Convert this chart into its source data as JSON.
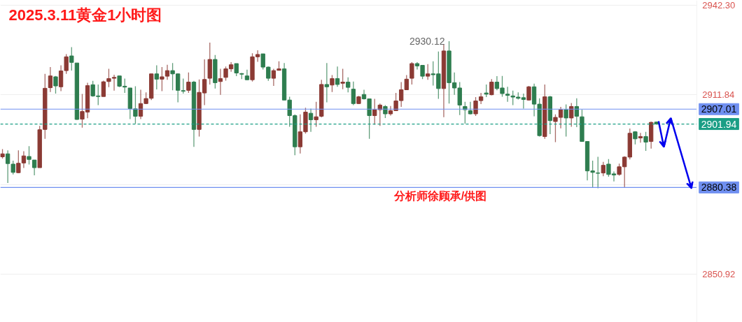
{
  "chart_data": {
    "type": "candlestick",
    "title": "2025.3.11黄金1小时图",
    "categories": [
      null,
      null,
      null,
      null,
      null,
      null,
      null,
      null,
      null,
      null,
      null,
      null,
      null,
      null,
      null,
      null,
      null,
      null,
      null,
      null,
      null,
      null,
      null,
      null,
      null,
      null,
      null,
      null,
      null,
      null,
      null,
      null,
      null,
      null,
      null,
      null,
      null,
      null,
      null,
      null,
      null,
      null,
      null,
      null,
      null,
      null,
      null,
      null,
      null,
      null,
      null,
      null,
      null,
      null,
      null,
      null,
      null,
      null,
      null,
      null,
      null,
      null,
      null,
      null,
      null,
      null,
      null,
      null,
      null,
      null,
      null,
      null,
      null,
      null,
      null,
      null,
      null,
      null,
      null,
      null,
      null,
      null,
      null,
      null,
      null,
      null,
      null,
      null,
      null,
      null,
      null,
      null,
      null,
      null,
      null,
      null,
      null,
      null,
      null,
      null,
      null,
      null,
      null,
      null,
      null,
      null,
      null,
      null,
      null,
      null,
      null,
      null,
      null,
      null,
      null,
      null,
      null,
      null,
      null,
      null,
      null,
      null,
      null,
      null
    ],
    "ohlc": [
      [
        2890.8,
        2893.4,
        2890.2,
        2891.8
      ],
      [
        2891.8,
        2893.0,
        2881.9,
        2888.5
      ],
      [
        2888.3,
        2889.5,
        2884.8,
        2885.5
      ],
      [
        2885.4,
        2893.0,
        2885.2,
        2888.6
      ],
      [
        2888.7,
        2892.7,
        2887.0,
        2891.1
      ],
      [
        2890.9,
        2894.4,
        2888.2,
        2889.9
      ],
      [
        2889.7,
        2889.7,
        2884.5,
        2887.1
      ],
      [
        2887.1,
        2901.3,
        2887.1,
        2900.0
      ],
      [
        2900.1,
        2919.0,
        2896.9,
        2914.1
      ],
      [
        2914.3,
        2921.3,
        2912.8,
        2918.3
      ],
      [
        2918.0,
        2918.3,
        2912.3,
        2914.9
      ],
      [
        2914.6,
        2921.9,
        2913.1,
        2920.0
      ],
      [
        2920.1,
        2925.7,
        2919.0,
        2924.8
      ],
      [
        2925.1,
        2928.1,
        2920.1,
        2922.9
      ],
      [
        2922.7,
        2922.7,
        2903.4,
        2903.5
      ],
      [
        2903.6,
        2912.2,
        2900.7,
        2906.2
      ],
      [
        2906.0,
        2916.0,
        2903.9,
        2915.0
      ],
      [
        2915.3,
        2916.6,
        2911.2,
        2911.5
      ],
      [
        2911.5,
        2915.4,
        2908.4,
        2911.3
      ],
      [
        2911.3,
        2916.7,
        2911.3,
        2916.3
      ],
      [
        2916.4,
        2920.7,
        2914.5,
        2917.4
      ],
      [
        2917.5,
        2918.7,
        2913.3,
        2917.8
      ],
      [
        2918.3,
        2918.3,
        2914.5,
        2914.8
      ],
      [
        2914.8,
        2917.4,
        2912.5,
        2914.5
      ],
      [
        2914.2,
        2914.2,
        2903.6,
        2907.2
      ],
      [
        2907.1,
        2914.8,
        2902.1,
        2904.6
      ],
      [
        2904.6,
        2913.6,
        2903.6,
        2908.9
      ],
      [
        2908.9,
        2912.7,
        2908.7,
        2910.6
      ],
      [
        2910.7,
        2919.0,
        2910.1,
        2919.0
      ],
      [
        2919.0,
        2921.9,
        2913.7,
        2917.2
      ],
      [
        2917.2,
        2921.3,
        2913.1,
        2918.0
      ],
      [
        2918.2,
        2922.1,
        2917.0,
        2920.1
      ],
      [
        2920.1,
        2922.7,
        2913.4,
        2919.0
      ],
      [
        2919.0,
        2919.2,
        2909.3,
        2913.4
      ],
      [
        2913.3,
        2917.4,
        2912.3,
        2913.1
      ],
      [
        2913.4,
        2919.5,
        2912.5,
        2916.2
      ],
      [
        2916.2,
        2916.6,
        2894.2,
        2900.1
      ],
      [
        2900.1,
        2917.1,
        2897.7,
        2912.7
      ],
      [
        2912.5,
        2923.9,
        2908.4,
        2917.1
      ],
      [
        2917.5,
        2929.6,
        2915.4,
        2923.9
      ],
      [
        2923.9,
        2925.4,
        2914.0,
        2916.0
      ],
      [
        2916.4,
        2920.7,
        2911.9,
        2917.4
      ],
      [
        2917.8,
        2921.5,
        2916.7,
        2920.7
      ],
      [
        2920.7,
        2923.0,
        2919.7,
        2922.1
      ],
      [
        2922.5,
        2922.5,
        2918.2,
        2919.3
      ],
      [
        2919.1,
        2919.3,
        2917.2,
        2918.9
      ],
      [
        2918.3,
        2920.4,
        2916.9,
        2917.0
      ],
      [
        2917.0,
        2926.0,
        2916.4,
        2924.8
      ],
      [
        2924.8,
        2927.0,
        2923.1,
        2925.6
      ],
      [
        2925.8,
        2925.8,
        2920.5,
        2921.3
      ],
      [
        2921.3,
        2921.5,
        2916.6,
        2917.5
      ],
      [
        2917.5,
        2920.7,
        2914.9,
        2920.1
      ],
      [
        2920.2,
        2923.3,
        2920.1,
        2920.7
      ],
      [
        2920.7,
        2922.7,
        2910.1,
        2910.1
      ],
      [
        2910.1,
        2911.2,
        2901.0,
        2904.8
      ],
      [
        2904.8,
        2905.2,
        2891.3,
        2894.2
      ],
      [
        2894.2,
        2905.2,
        2891.9,
        2899.3
      ],
      [
        2899.3,
        2907.5,
        2898.7,
        2906.0
      ],
      [
        2905.6,
        2907.2,
        2899.3,
        2903.4
      ],
      [
        2903.4,
        2909.5,
        2901.0,
        2904.4
      ],
      [
        2904.6,
        2917.0,
        2904.2,
        2915.4
      ],
      [
        2915.4,
        2922.7,
        2909.3,
        2914.6
      ],
      [
        2915.2,
        2918.6,
        2912.8,
        2917.4
      ],
      [
        2917.4,
        2921.5,
        2914.6,
        2915.4
      ],
      [
        2915.8,
        2920.7,
        2913.8,
        2916.2
      ],
      [
        2916.2,
        2917.8,
        2912.7,
        2914.4
      ],
      [
        2913.8,
        2916.4,
        2908.4,
        2908.9
      ],
      [
        2908.9,
        2911.5,
        2908.7,
        2911.2
      ],
      [
        2912.0,
        2913.6,
        2910.3,
        2910.5
      ],
      [
        2910.5,
        2910.5,
        2896.9,
        2904.8
      ],
      [
        2904.8,
        2910.5,
        2901.7,
        2906.8
      ],
      [
        2906.8,
        2908.9,
        2901.3,
        2908.4
      ],
      [
        2907.9,
        2908.4,
        2904.0,
        2905.4
      ],
      [
        2905.4,
        2908.1,
        2904.8,
        2906.5
      ],
      [
        2906.5,
        2912.5,
        2906.5,
        2909.8
      ],
      [
        2909.9,
        2916.2,
        2907.8,
        2913.6
      ],
      [
        2913.6,
        2918.6,
        2913.6,
        2917.2
      ],
      [
        2917.5,
        2923.0,
        2915.4,
        2922.5
      ],
      [
        2922.5,
        2923.0,
        2920.5,
        2921.7
      ],
      [
        2921.9,
        2921.9,
        2917.2,
        2918.2
      ],
      [
        2918.2,
        2922.3,
        2917.0,
        2919.0
      ],
      [
        2919.0,
        2923.3,
        2915.0,
        2918.7
      ],
      [
        2919.0,
        2926.6,
        2910.5,
        2914.0
      ],
      [
        2914.0,
        2928.9,
        2904.3,
        2926.8
      ],
      [
        2926.8,
        2930.12,
        2908.9,
        2916.0
      ],
      [
        2916.0,
        2919.5,
        2911.9,
        2914.2
      ],
      [
        2914.2,
        2916.2,
        2905.0,
        2908.4
      ],
      [
        2907.9,
        2909.5,
        2902.1,
        2906.8
      ],
      [
        2906.5,
        2909.5,
        2905.2,
        2905.4
      ],
      [
        2905.4,
        2911.1,
        2904.7,
        2909.8
      ],
      [
        2909.9,
        2912.5,
        2908.7,
        2911.2
      ],
      [
        2912.5,
        2915.4,
        2911.1,
        2912.1
      ],
      [
        2911.9,
        2917.2,
        2911.7,
        2916.2
      ],
      [
        2916.2,
        2918.2,
        2913.4,
        2914.0
      ],
      [
        2914.2,
        2918.3,
        2911.2,
        2912.3
      ],
      [
        2912.1,
        2914.6,
        2909.5,
        2911.7
      ],
      [
        2911.5,
        2913.3,
        2908.4,
        2911.1
      ],
      [
        2911.1,
        2912.7,
        2910.3,
        2910.7
      ],
      [
        2910.9,
        2912.3,
        2907.2,
        2910.3
      ],
      [
        2910.1,
        2914.9,
        2909.9,
        2914.6
      ],
      [
        2914.6,
        2915.7,
        2904.6,
        2908.7
      ],
      [
        2908.7,
        2910.7,
        2897.7,
        2898.0
      ],
      [
        2897.7,
        2915.4,
        2896.9,
        2911.2
      ],
      [
        2911.2,
        2911.5,
        2898.5,
        2903.1
      ],
      [
        2902.8,
        2905.2,
        2895.8,
        2904.2
      ],
      [
        2904.2,
        2907.8,
        2900.5,
        2906.8
      ],
      [
        2906.8,
        2908.6,
        2897.7,
        2904.0
      ],
      [
        2904.0,
        2909.1,
        2901.0,
        2907.9
      ],
      [
        2907.9,
        2910.7,
        2900.9,
        2904.6
      ],
      [
        2904.4,
        2906.8,
        2896.0,
        2896.0
      ],
      [
        2896.0,
        2896.0,
        2882.8,
        2886.0
      ],
      [
        2886.0,
        2889.5,
        2880.4,
        2885.5
      ],
      [
        2885.3,
        2890.8,
        2880.1,
        2885.2
      ],
      [
        2885.3,
        2889.1,
        2884.2,
        2887.9
      ],
      [
        2888.3,
        2890.0,
        2884.0,
        2884.8
      ],
      [
        2885.0,
        2885.8,
        2882.4,
        2884.6
      ],
      [
        2884.8,
        2888.5,
        2884.4,
        2887.4
      ],
      [
        2887.4,
        2891.0,
        2880.4,
        2890.7
      ],
      [
        2890.7,
        2900.4,
        2889.9,
        2898.8
      ],
      [
        2899.3,
        2899.5,
        2895.0,
        2896.9
      ],
      [
        2897.2,
        2898.9,
        2895.6,
        2897.7
      ],
      [
        2897.7,
        2899.3,
        2892.8,
        2895.8
      ],
      [
        2896.0,
        2902.8,
        2893.6,
        2902.5
      ],
      [
        2902.6,
        2902.8,
        2901.7,
        2901.94
      ]
    ],
    "colors": [
      "#8b3a34",
      "#2e7d4f",
      "#2e7d4f",
      "#8b3a34",
      "#8b3a34",
      "#2e7d4f",
      "#2e7d4f",
      "#8b3a34",
      "#8b3a34",
      "#8b3a34",
      "#2e7d4f",
      "#8b3a34",
      "#8b3a34",
      "#2e7d4f",
      "#2e7d4f",
      "#8b3a34",
      "#8b3a34",
      "#2e7d4f",
      "#2e7d4f",
      "#8b3a34",
      "#8b3a34",
      "#8b3a34",
      "#2e7d4f",
      "#2e7d4f",
      "#2e7d4f",
      "#2e7d4f",
      "#8b3a34",
      "#8b3a34",
      "#8b3a34",
      "#2e7d4f",
      "#8b3a34",
      "#8b3a34",
      "#2e7d4f",
      "#2e7d4f",
      "#2e7d4f",
      "#8b3a34",
      "#2e7d4f",
      "#8b3a34",
      "#8b3a34",
      "#8b3a34",
      "#2e7d4f",
      "#8b3a34",
      "#8b3a34",
      "#8b3a34",
      "#2e7d4f",
      "#2e7d4f",
      "#2e7d4f",
      "#8b3a34",
      "#8b3a34",
      "#2e7d4f",
      "#2e7d4f",
      "#8b3a34",
      "#8b3a34",
      "#2e7d4f",
      "#2e7d4f",
      "#2e7d4f",
      "#8b3a34",
      "#8b3a34",
      "#2e7d4f",
      "#8b3a34",
      "#8b3a34",
      "#2e7d4f",
      "#8b3a34",
      "#2e7d4f",
      "#8b3a34",
      "#2e7d4f",
      "#2e7d4f",
      "#8b3a34",
      "#2e7d4f",
      "#2e7d4f",
      "#8b3a34",
      "#8b3a34",
      "#2e7d4f",
      "#8b3a34",
      "#8b3a34",
      "#8b3a34",
      "#8b3a34",
      "#8b3a34",
      "#2e7d4f",
      "#2e7d4f",
      "#8b3a34",
      "#2e7d4f",
      "#2e7d4f",
      "#8b3a34",
      "#2e7d4f",
      "#2e7d4f",
      "#2e7d4f",
      "#2e7d4f",
      "#2e7d4f",
      "#8b3a34",
      "#8b3a34",
      "#2e7d4f",
      "#8b3a34",
      "#2e7d4f",
      "#2e7d4f",
      "#2e7d4f",
      "#2e7d4f",
      "#2e7d4f",
      "#2e7d4f",
      "#8b3a34",
      "#2e7d4f",
      "#2e7d4f",
      "#8b3a34",
      "#2e7d4f",
      "#8b3a34",
      "#8b3a34",
      "#2e7d4f",
      "#8b3a34",
      "#2e7d4f",
      "#2e7d4f",
      "#2e7d4f",
      "#2e7d4f",
      "#2e7d4f",
      "#8b3a34",
      "#2e7d4f",
      "#2e7d4f",
      "#8b3a34",
      "#8b3a34",
      "#8b3a34",
      "#2e7d4f",
      "#8b3a34",
      "#2e7d4f",
      "#8b3a34",
      "#2e7d4f"
    ],
    "ylim": [
      2834.5,
      2944.0
    ],
    "yticks": [
      {
        "value": 2942.3,
        "label": "2942.30"
      },
      {
        "value": 2911.84,
        "label": "2911.84"
      },
      {
        "value": 2881.38,
        "label": null
      },
      {
        "value": 2850.92,
        "label": "2850.92"
      }
    ],
    "grid": "y",
    "tick_labels": "y",
    "ref_lines": [
      {
        "axis": "y",
        "value": 2907.01,
        "label": "2907.01",
        "color": "#6f8ff0",
        "line_style": "solid"
      },
      {
        "axis": "y",
        "value": 2901.94,
        "label": "2901.94",
        "color": "#1a9e85",
        "line_style": "dashed"
      },
      {
        "axis": "y",
        "value": 2880.38,
        "label": "2880.38",
        "color": "#6f8ff0",
        "line_style": "solid"
      }
    ],
    "annotations": [
      "2930.12",
      "分析师徐顾承/供图"
    ]
  }
}
